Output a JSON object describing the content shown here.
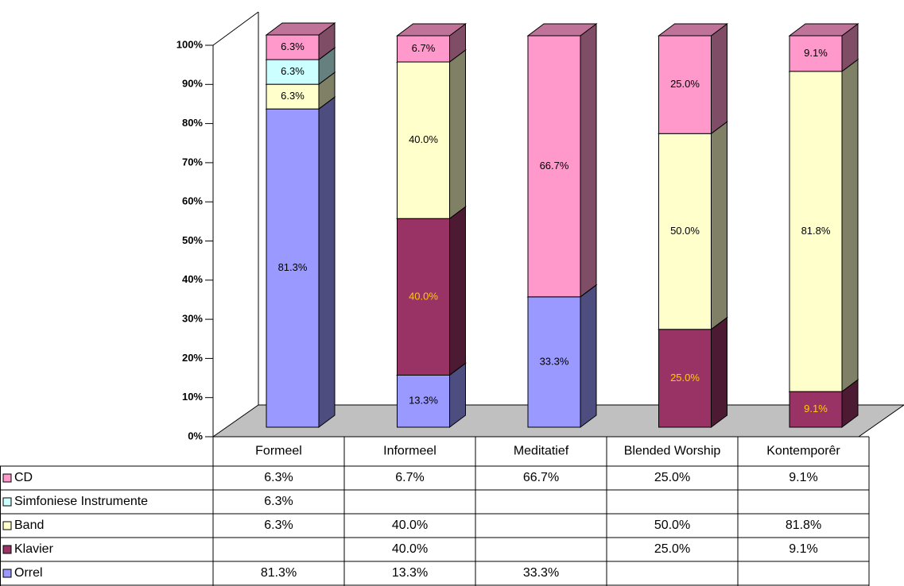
{
  "chart_data": {
    "type": "bar3d_stacked",
    "categories": [
      "Formeel",
      "Informeel",
      "Meditatief",
      "Blended Worship",
      "Kontemporêr"
    ],
    "series": [
      {
        "name": "Orrel",
        "color": "#9999ff",
        "label_color": "#000000",
        "values": [
          81.3,
          13.3,
          33.3,
          null,
          null
        ],
        "value_labels": [
          "81.3%",
          "13.3%",
          "33.3%",
          null,
          null
        ]
      },
      {
        "name": "Klavier",
        "color": "#993366",
        "label_color": "#ffcc00",
        "values": [
          null,
          40.0,
          null,
          25.0,
          9.1
        ],
        "value_labels": [
          null,
          "40.0%",
          null,
          "25.0%",
          "9.1%"
        ]
      },
      {
        "name": "Band",
        "color": "#ffffcc",
        "label_color": "#000000",
        "values": [
          6.3,
          40.0,
          null,
          50.0,
          81.8
        ],
        "value_labels": [
          "6.3%",
          "40.0%",
          null,
          "50.0%",
          "81.8%"
        ]
      },
      {
        "name": "Simfoniese Instrumente",
        "color": "#ccffff",
        "label_color": "#000000",
        "values": [
          6.3,
          null,
          null,
          null,
          null
        ],
        "value_labels": [
          "6.3%",
          null,
          null,
          null,
          null
        ]
      },
      {
        "name": "CD",
        "color": "#ff99cc",
        "label_color": "#000000",
        "values": [
          6.3,
          6.7,
          66.7,
          25.0,
          9.1
        ],
        "value_labels": [
          "6.3%",
          "6.7%",
          "66.7%",
          "25.0%",
          "9.1%"
        ]
      }
    ],
    "ylim": [
      0,
      100
    ],
    "yticks": [
      {
        "value": 0,
        "label": "0%"
      },
      {
        "value": 10,
        "label": "10%"
      },
      {
        "value": 20,
        "label": "20%"
      },
      {
        "value": 30,
        "label": "30%"
      },
      {
        "value": 40,
        "label": "40%"
      },
      {
        "value": 50,
        "label": "50%"
      },
      {
        "value": 60,
        "label": "60%"
      },
      {
        "value": 70,
        "label": "70%"
      },
      {
        "value": 80,
        "label": "80%"
      },
      {
        "value": 90,
        "label": "90%"
      },
      {
        "value": 100,
        "label": "100%"
      }
    ],
    "data_table": true
  }
}
